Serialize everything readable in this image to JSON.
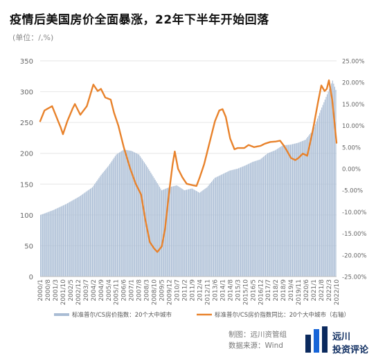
{
  "header": {
    "title": "疫情后美国房价全面暴涨，22年下半年开始回落",
    "unit": "(单位：/,%)"
  },
  "footer": {
    "made_by": "制图：远川资管组",
    "source": "数据来源：Wind"
  },
  "logo": {
    "name": "远川",
    "subtitle": "投资评论"
  },
  "colors": {
    "bars": "#a9bcd4",
    "line": "#e8822b",
    "axis_text": "#666666",
    "grid": "#e6e6e6"
  },
  "chart_data": {
    "type": "bar+line",
    "x_tick_labels": [
      "2000/1",
      "2000/8",
      "2001/3",
      "2001/10",
      "2002/5",
      "2002/12",
      "2003/7",
      "2004/2",
      "2004/9",
      "2005/4",
      "2005/11",
      "2006/6",
      "2007/1",
      "2007/8",
      "2008/3",
      "2008/10",
      "2009/5",
      "2009/12",
      "2010/7",
      "2011/2",
      "2011/9",
      "2012/4",
      "2012/11",
      "2013/6",
      "2014/1",
      "2014/8",
      "2015/3",
      "2015/10",
      "2016/5",
      "2016/12",
      "2017/7",
      "2018/2",
      "2018/9",
      "2019/4",
      "2019/11",
      "2020/6",
      "2021/1",
      "2021/8",
      "2022/3",
      "2022/10"
    ],
    "y_left": {
      "min": 0,
      "max": 350,
      "ticks": [
        0,
        50,
        100,
        150,
        200,
        250,
        300,
        350
      ]
    },
    "y_right": {
      "min": -25,
      "max": 25,
      "ticks": [
        "-25.00%",
        "-20.00%",
        "-15.00%",
        "-10.00%",
        "-5.00%",
        "0.00%",
        "5.00%",
        "10.00%",
        "15.00%",
        "20.00%",
        "25.00%"
      ]
    },
    "grid": true,
    "legend_position": "bottom",
    "series": [
      {
        "name": "标准普尔/CS房价指数：20个大中城市",
        "type": "bar",
        "axis": "left",
        "keypoints": [
          [
            "2000/1",
            100
          ],
          [
            "2001/1",
            108
          ],
          [
            "2002/1",
            118
          ],
          [
            "2003/1",
            130
          ],
          [
            "2004/1",
            145
          ],
          [
            "2004/9",
            165
          ],
          [
            "2005/4",
            180
          ],
          [
            "2005/11",
            198
          ],
          [
            "2006/6",
            206
          ],
          [
            "2007/1",
            204
          ],
          [
            "2007/8",
            198
          ],
          [
            "2008/3",
            180
          ],
          [
            "2008/10",
            160
          ],
          [
            "2009/5",
            140
          ],
          [
            "2009/12",
            145
          ],
          [
            "2010/7",
            148
          ],
          [
            "2011/2",
            140
          ],
          [
            "2011/9",
            143
          ],
          [
            "2012/4",
            136
          ],
          [
            "2012/11",
            145
          ],
          [
            "2013/6",
            160
          ],
          [
            "2014/1",
            166
          ],
          [
            "2014/8",
            172
          ],
          [
            "2015/3",
            175
          ],
          [
            "2015/10",
            180
          ],
          [
            "2016/5",
            186
          ],
          [
            "2016/12",
            190
          ],
          [
            "2017/7",
            200
          ],
          [
            "2018/2",
            205
          ],
          [
            "2018/9",
            213
          ],
          [
            "2019/4",
            214
          ],
          [
            "2019/11",
            217
          ],
          [
            "2020/6",
            222
          ],
          [
            "2021/1",
            238
          ],
          [
            "2021/8",
            270
          ],
          [
            "2022/3",
            300
          ],
          [
            "2022/7",
            318
          ],
          [
            "2022/10",
            303
          ]
        ]
      },
      {
        "name": "标准普尔/CS房价指数同比：20个大中城市（右轴）",
        "type": "line",
        "axis": "right",
        "keypoints": [
          [
            "2000/1",
            11
          ],
          [
            "2000/5",
            13.5
          ],
          [
            "2000/12",
            14.5
          ],
          [
            "2001/4",
            12
          ],
          [
            "2001/8",
            9.5
          ],
          [
            "2001/10",
            8
          ],
          [
            "2002/2",
            11
          ],
          [
            "2002/7",
            14
          ],
          [
            "2002/9",
            15
          ],
          [
            "2003/2",
            12.5
          ],
          [
            "2003/8",
            14.5
          ],
          [
            "2004/2",
            19.5
          ],
          [
            "2004/6",
            18
          ],
          [
            "2004/9",
            18.5
          ],
          [
            "2005/1",
            16.5
          ],
          [
            "2005/6",
            16
          ],
          [
            "2005/9",
            13
          ],
          [
            "2006/1",
            10
          ],
          [
            "2006/6",
            5
          ],
          [
            "2006/12",
            0
          ],
          [
            "2007/5",
            -3.5
          ],
          [
            "2007/10",
            -6
          ],
          [
            "2008/2",
            -12
          ],
          [
            "2008/6",
            -17
          ],
          [
            "2008/10",
            -18.5
          ],
          [
            "2009/1",
            -19.3
          ],
          [
            "2009/5",
            -18
          ],
          [
            "2009/8",
            -14
          ],
          [
            "2009/12",
            -5
          ],
          [
            "2010/3",
            1
          ],
          [
            "2010/5",
            4
          ],
          [
            "2010/8",
            0
          ],
          [
            "2010/12",
            -2
          ],
          [
            "2011/4",
            -3.5
          ],
          [
            "2011/9",
            -3.8
          ],
          [
            "2012/1",
            -4
          ],
          [
            "2012/4",
            -2
          ],
          [
            "2012/8",
            1
          ],
          [
            "2013/1",
            6
          ],
          [
            "2013/6",
            11
          ],
          [
            "2013/10",
            13.5
          ],
          [
            "2014/1",
            13.8
          ],
          [
            "2014/4",
            12
          ],
          [
            "2014/8",
            7
          ],
          [
            "2014/12",
            4.5
          ],
          [
            "2015/3",
            4.8
          ],
          [
            "2015/6",
            4.8
          ],
          [
            "2015/9",
            4.8
          ],
          [
            "2016/1",
            5.5
          ],
          [
            "2016/6",
            5
          ],
          [
            "2016/12",
            5.3
          ],
          [
            "2017/4",
            5.8
          ],
          [
            "2017/9",
            6.2
          ],
          [
            "2018/2",
            6.3
          ],
          [
            "2018/6",
            6.5
          ],
          [
            "2018/9",
            5.5
          ],
          [
            "2018/12",
            4.3
          ],
          [
            "2019/4",
            2.5
          ],
          [
            "2019/8",
            2
          ],
          [
            "2019/11",
            2.5
          ],
          [
            "2020/3",
            3.5
          ],
          [
            "2020/7",
            3
          ],
          [
            "2020/11",
            7.5
          ],
          [
            "2021/1",
            10
          ],
          [
            "2021/5",
            15.5
          ],
          [
            "2021/8",
            19.3
          ],
          [
            "2021/11",
            18
          ],
          [
            "2022/1",
            18.5
          ],
          [
            "2022/3",
            20.5
          ],
          [
            "2022/6",
            16
          ],
          [
            "2022/8",
            11
          ],
          [
            "2022/10",
            6
          ]
        ]
      }
    ]
  }
}
